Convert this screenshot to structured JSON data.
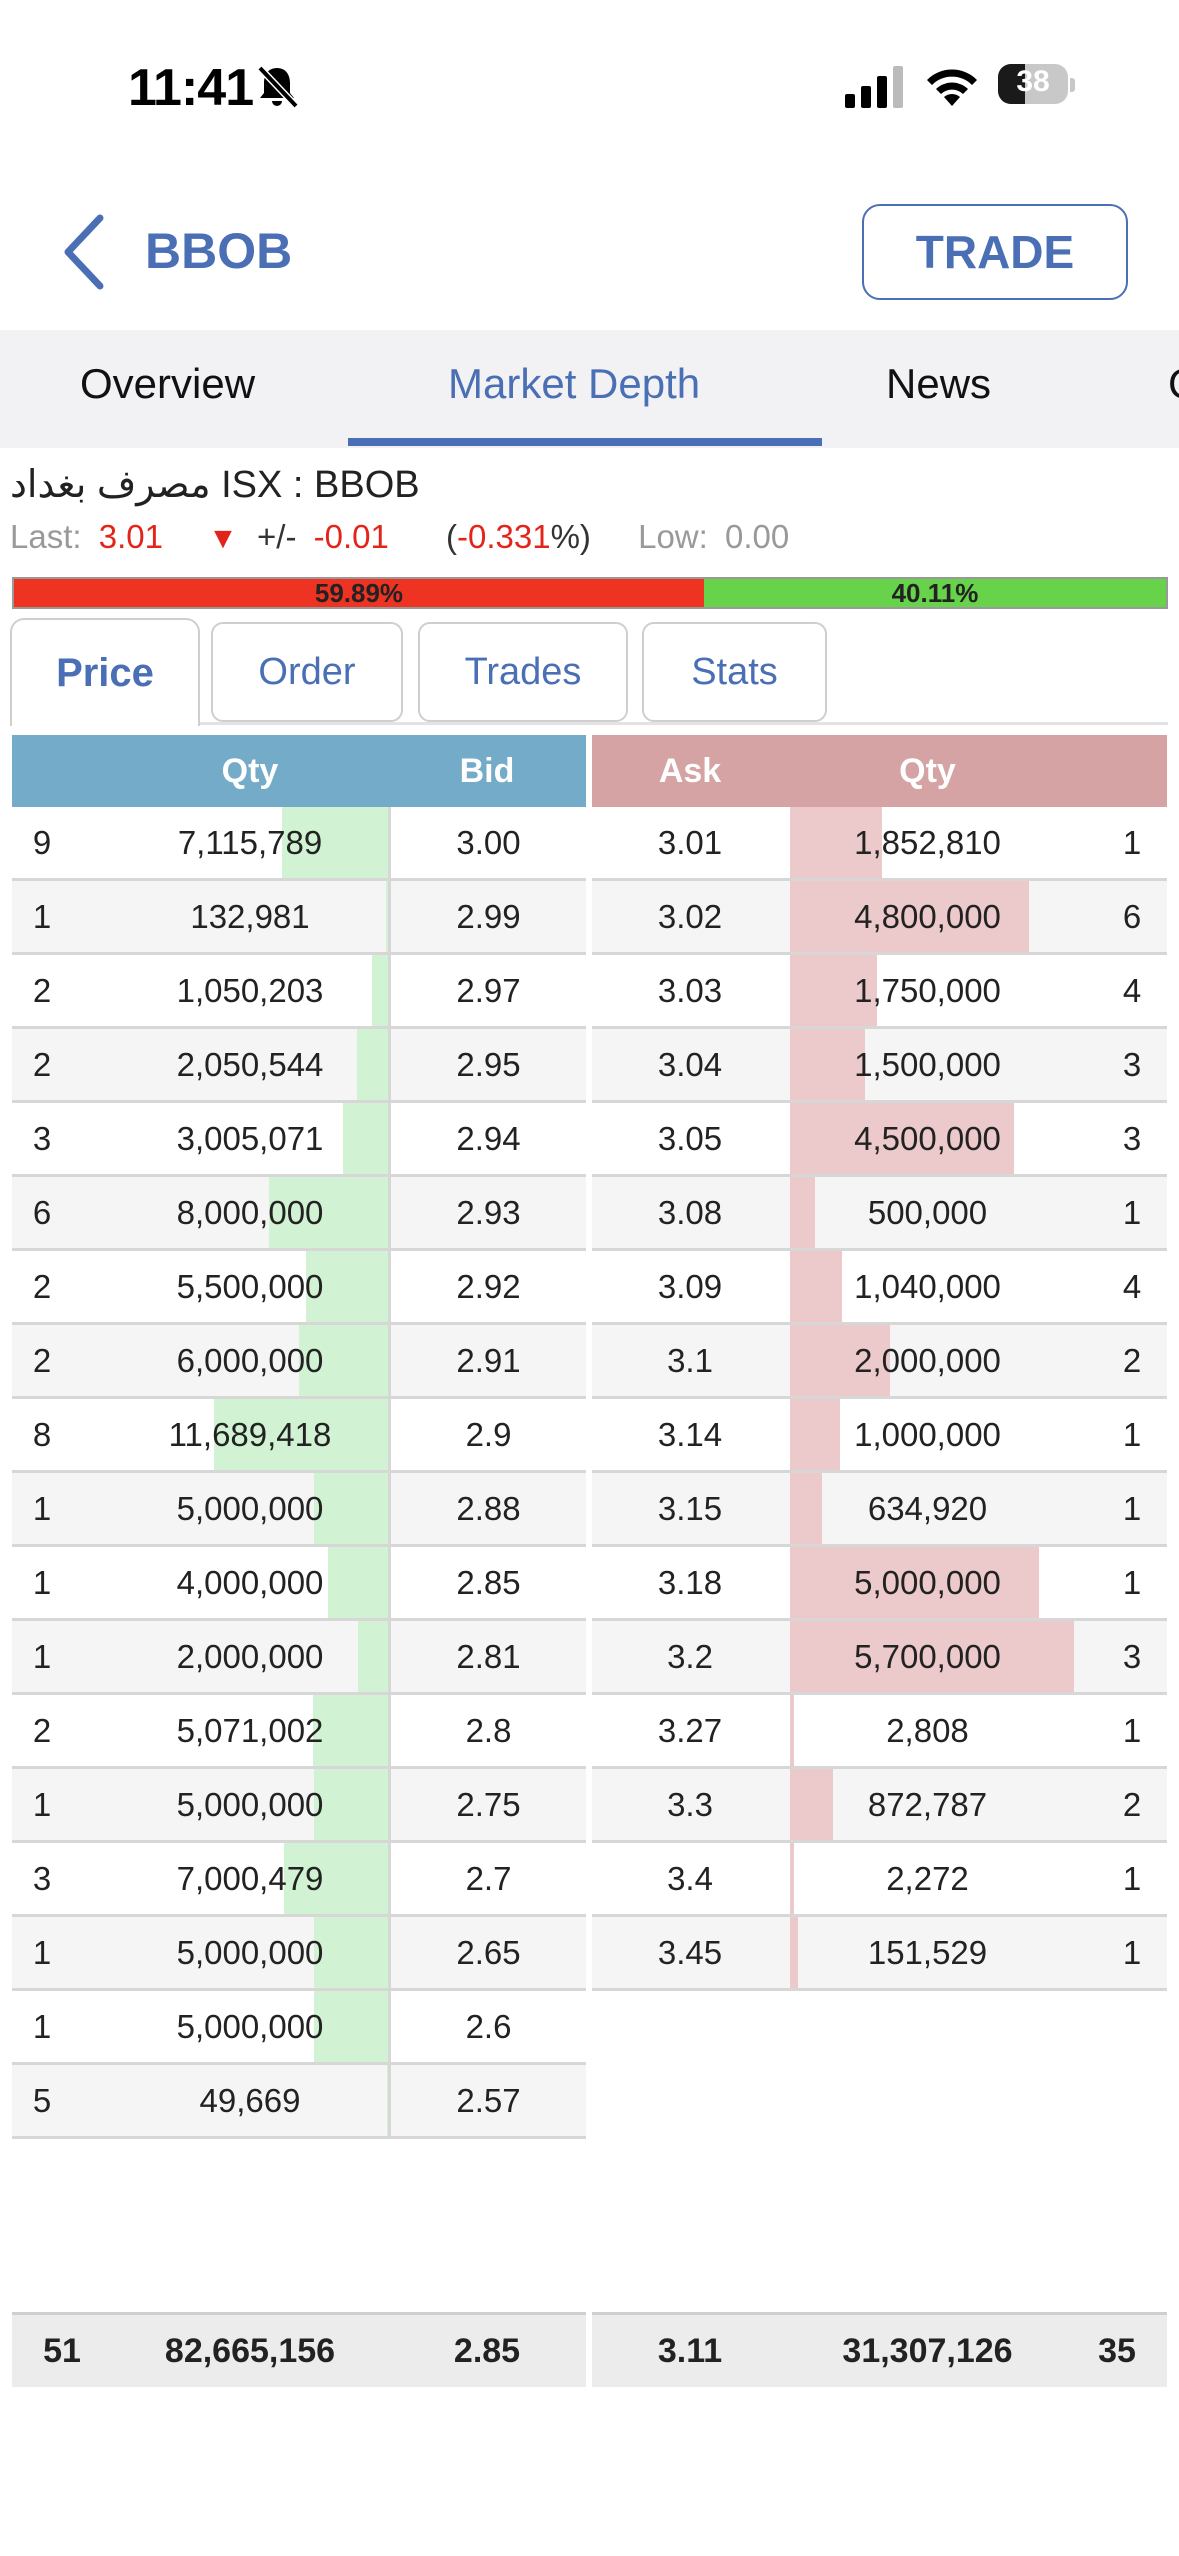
{
  "status_bar": {
    "time": "11:41",
    "battery": "38",
    "battery_level": 0.38
  },
  "header": {
    "back_icon": "chevron-left-icon",
    "title": "BBOB",
    "trade_label": "TRADE"
  },
  "tabs": [
    {
      "label": "Overview",
      "active": false
    },
    {
      "label": "Market Depth",
      "active": true
    },
    {
      "label": "News",
      "active": false
    },
    {
      "label": "C",
      "active": false
    }
  ],
  "stock": {
    "name": "مصرف بغداد ISX : BBOB",
    "last_label": "Last:",
    "last_value": "3.01",
    "change_label": "+/-",
    "change_value": "-0.01",
    "pct_open": "(",
    "pct_value": "-0.331",
    "pct_close": "%)",
    "low_label": "Low:",
    "low_value": "0.00"
  },
  "ratio": {
    "sell_pct": "59.89%",
    "buy_pct": "40.11%",
    "sell_fraction": 0.5989
  },
  "subtabs": [
    {
      "label": "Price",
      "active": true
    },
    {
      "label": "Order",
      "active": false
    },
    {
      "label": "Trades",
      "active": false
    },
    {
      "label": "Stats",
      "active": false
    }
  ],
  "bid_header": {
    "qty": "Qty",
    "price": "Bid"
  },
  "ask_header": {
    "price": "Ask",
    "qty": "Qty"
  },
  "bids": [
    {
      "orders": "9",
      "qty": "7,115,789",
      "price": "3.00",
      "qty_num": 7115789
    },
    {
      "orders": "1",
      "qty": "132,981",
      "price": "2.99",
      "qty_num": 132981
    },
    {
      "orders": "2",
      "qty": "1,050,203",
      "price": "2.97",
      "qty_num": 1050203
    },
    {
      "orders": "2",
      "qty": "2,050,544",
      "price": "2.95",
      "qty_num": 2050544
    },
    {
      "orders": "3",
      "qty": "3,005,071",
      "price": "2.94",
      "qty_num": 3005071
    },
    {
      "orders": "6",
      "qty": "8,000,000",
      "price": "2.93",
      "qty_num": 8000000
    },
    {
      "orders": "2",
      "qty": "5,500,000",
      "price": "2.92",
      "qty_num": 5500000
    },
    {
      "orders": "2",
      "qty": "6,000,000",
      "price": "2.91",
      "qty_num": 6000000
    },
    {
      "orders": "8",
      "qty": "11,689,418",
      "price": "2.9",
      "qty_num": 11689418
    },
    {
      "orders": "1",
      "qty": "5,000,000",
      "price": "2.88",
      "qty_num": 5000000
    },
    {
      "orders": "1",
      "qty": "4,000,000",
      "price": "2.85",
      "qty_num": 4000000
    },
    {
      "orders": "1",
      "qty": "2,000,000",
      "price": "2.81",
      "qty_num": 2000000
    },
    {
      "orders": "2",
      "qty": "5,071,002",
      "price": "2.8",
      "qty_num": 5071002
    },
    {
      "orders": "1",
      "qty": "5,000,000",
      "price": "2.75",
      "qty_num": 5000000
    },
    {
      "orders": "3",
      "qty": "7,000,479",
      "price": "2.7",
      "qty_num": 7000479
    },
    {
      "orders": "1",
      "qty": "5,000,000",
      "price": "2.65",
      "qty_num": 5000000
    },
    {
      "orders": "1",
      "qty": "5,000,000",
      "price": "2.6",
      "qty_num": 5000000
    },
    {
      "orders": "5",
      "qty": "49,669",
      "price": "2.57",
      "qty_num": 49669
    }
  ],
  "asks": [
    {
      "price": "3.01",
      "qty": "1,852,810",
      "orders": "1",
      "qty_num": 1852810
    },
    {
      "price": "3.02",
      "qty": "4,800,000",
      "orders": "6",
      "qty_num": 4800000
    },
    {
      "price": "3.03",
      "qty": "1,750,000",
      "orders": "4",
      "qty_num": 1750000
    },
    {
      "price": "3.04",
      "qty": "1,500,000",
      "orders": "3",
      "qty_num": 1500000
    },
    {
      "price": "3.05",
      "qty": "4,500,000",
      "orders": "3",
      "qty_num": 4500000
    },
    {
      "price": "3.08",
      "qty": "500,000",
      "orders": "1",
      "qty_num": 500000
    },
    {
      "price": "3.09",
      "qty": "1,040,000",
      "orders": "4",
      "qty_num": 1040000
    },
    {
      "price": "3.1",
      "qty": "2,000,000",
      "orders": "2",
      "qty_num": 2000000
    },
    {
      "price": "3.14",
      "qty": "1,000,000",
      "orders": "1",
      "qty_num": 1000000
    },
    {
      "price": "3.15",
      "qty": "634,920",
      "orders": "1",
      "qty_num": 634920
    },
    {
      "price": "3.18",
      "qty": "5,000,000",
      "orders": "1",
      "qty_num": 5000000
    },
    {
      "price": "3.2",
      "qty": "5,700,000",
      "orders": "3",
      "qty_num": 5700000
    },
    {
      "price": "3.27",
      "qty": "2,808",
      "orders": "1",
      "qty_num": 2808
    },
    {
      "price": "3.3",
      "qty": "872,787",
      "orders": "2",
      "qty_num": 872787
    },
    {
      "price": "3.4",
      "qty": "2,272",
      "orders": "1",
      "qty_num": 2272
    },
    {
      "price": "3.45",
      "qty": "151,529",
      "orders": "1",
      "qty_num": 151529
    }
  ],
  "totals": {
    "bid_orders": "51",
    "bid_qty": "82,665,156",
    "bid_price": "2.85",
    "ask_price": "3.11",
    "ask_qty": "31,307,126",
    "ask_orders": "35"
  }
}
